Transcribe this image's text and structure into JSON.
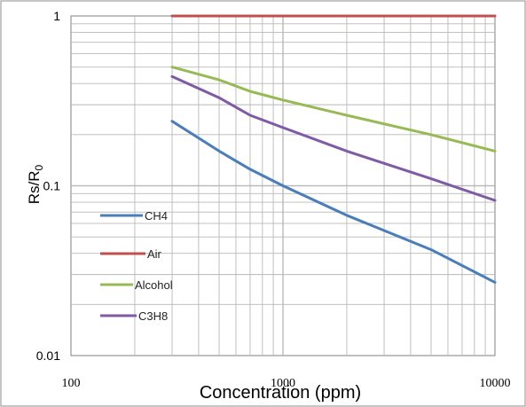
{
  "chart_data": {
    "type": "line",
    "title": "",
    "xlabel": "Concentration (ppm)",
    "ylabel_main": "Rs/R",
    "ylabel_sub": "0",
    "x_scale": "log",
    "y_scale": "log",
    "xlim": [
      100,
      10000
    ],
    "ylim": [
      0.01,
      1
    ],
    "x_ticks": [
      "100",
      "1000",
      "10000"
    ],
    "y_ticks": [
      "1",
      "0.1",
      "0.01"
    ],
    "grid": true,
    "legend_position": "left-middle",
    "series": [
      {
        "name": "CH4",
        "color": "#4a7ebb",
        "x": [
          300,
          500,
          700,
          1000,
          2000,
          5000,
          10000
        ],
        "y": [
          0.24,
          0.16,
          0.125,
          0.1,
          0.067,
          0.042,
          0.027
        ]
      },
      {
        "name": "Air",
        "color": "#c0504d",
        "x": [
          300,
          1000,
          10000
        ],
        "y": [
          1.0,
          1.0,
          1.0
        ]
      },
      {
        "name": "Alcohol",
        "color": "#98b954",
        "x": [
          300,
          500,
          700,
          1000,
          2000,
          5000,
          10000
        ],
        "y": [
          0.5,
          0.42,
          0.36,
          0.32,
          0.26,
          0.2,
          0.16
        ]
      },
      {
        "name": "C3H8",
        "color": "#7f5ba6",
        "x": [
          300,
          500,
          700,
          1000,
          2000,
          5000,
          10000
        ],
        "y": [
          0.44,
          0.33,
          0.26,
          0.22,
          0.16,
          0.11,
          0.082
        ]
      }
    ]
  }
}
